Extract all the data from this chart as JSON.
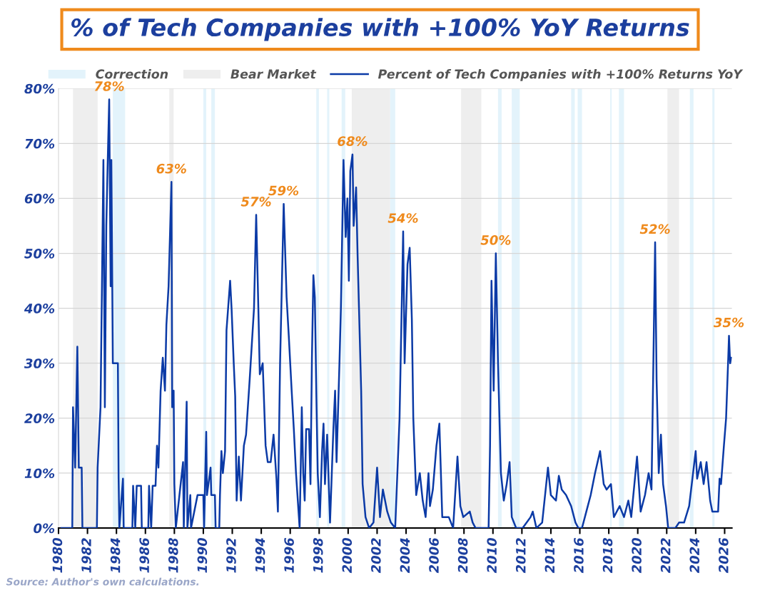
{
  "chart_data": {
    "type": "line",
    "title": "% of Tech Companies with +100% YoY Returns",
    "series": [
      {
        "name": "Percent of Tech Companies with +100% Returns YoY",
        "color": "#0b3aa6",
        "x": [
          1980.2,
          1980.95,
          1981.0,
          1981.15,
          1981.3,
          1981.4,
          1981.6,
          1981.65,
          1982.65,
          1982.7,
          1982.9,
          1983.0,
          1983.1,
          1983.2,
          1983.3,
          1983.4,
          1983.5,
          1983.6,
          1983.65,
          1983.75,
          1984.1,
          1984.15,
          1984.2,
          1984.45,
          1984.5,
          1985.1,
          1985.15,
          1985.3,
          1985.4,
          1985.7,
          1985.75,
          1986.2,
          1986.25,
          1986.4,
          1986.5,
          1986.7,
          1986.8,
          1986.9,
          1987.05,
          1987.2,
          1987.35,
          1987.45,
          1987.6,
          1987.8,
          1987.85,
          1987.95,
          1988.0,
          1988.1,
          1988.6,
          1988.65,
          1988.85,
          1988.9,
          1989.1,
          1989.15,
          1989.6,
          1990.0,
          1990.05,
          1990.2,
          1990.25,
          1990.5,
          1990.55,
          1990.8,
          1990.85,
          1991.1,
          1991.15,
          1991.25,
          1991.35,
          1991.5,
          1991.6,
          1991.85,
          1991.95,
          1992.1,
          1992.2,
          1992.3,
          1992.45,
          1992.6,
          1992.8,
          1992.95,
          1993.2,
          1993.5,
          1993.65,
          1993.8,
          1993.9,
          1994.1,
          1994.3,
          1994.45,
          1994.65,
          1994.85,
          1995.05,
          1995.15,
          1995.3,
          1995.55,
          1995.75,
          1995.9,
          1996.1,
          1996.25,
          1996.4,
          1996.65,
          1996.8,
          1996.9,
          1997.0,
          1997.1,
          1997.3,
          1997.4,
          1997.5,
          1997.6,
          1997.7,
          1997.8,
          1997.9,
          1998.05,
          1998.2,
          1998.3,
          1998.4,
          1998.55,
          1998.75,
          1998.98,
          1999.1,
          1999.2,
          1999.4,
          1999.5,
          1999.68,
          1999.83,
          1999.95,
          2000.05,
          2000.15,
          2000.3,
          2000.38,
          2000.55,
          2000.65,
          2000.75,
          2000.9,
          2001.0,
          2001.2,
          2001.45,
          2001.75,
          2002.0,
          2002.2,
          2002.4,
          2002.7,
          2002.95,
          2003.25,
          2003.55,
          2003.8,
          2003.9,
          2004.1,
          2004.25,
          2004.4,
          2004.5,
          2004.7,
          2004.95,
          2005.15,
          2005.35,
          2005.55,
          2005.65,
          2005.85,
          2006.1,
          2006.3,
          2006.5,
          2006.95,
          2007.25,
          2007.55,
          2007.75,
          2007.95,
          2008.4,
          2008.6,
          2008.8,
          2009.7,
          2009.8,
          2009.9,
          2010.05,
          2010.2,
          2010.35,
          2010.55,
          2010.75,
          2010.95,
          2011.15,
          2011.3,
          2011.6,
          2012.05,
          2012.6,
          2012.75,
          2013.0,
          2013.4,
          2013.8,
          2014.0,
          2014.35,
          2014.55,
          2014.75,
          2015.05,
          2015.4,
          2015.7,
          2015.9,
          2016.15,
          2016.45,
          2016.75,
          2017.05,
          2017.4,
          2017.65,
          2017.85,
          2018.15,
          2018.35,
          2018.75,
          2019.05,
          2019.35,
          2019.55,
          2019.95,
          2020.2,
          2020.5,
          2020.75,
          2020.95,
          2021.2,
          2021.3,
          2021.45,
          2021.6,
          2021.75,
          2021.95,
          2022.1,
          2022.6,
          2022.85,
          2023.2,
          2023.55,
          2024.0,
          2024.1,
          2024.35,
          2024.55,
          2024.75,
          2025.0,
          2025.15,
          2025.55,
          2025.65,
          2025.75,
          2025.95,
          2026.1,
          2026.25,
          2026.3,
          2026.38,
          2026.45
        ],
        "values": [
          0,
          0,
          22,
          11,
          33,
          11,
          11,
          0,
          0,
          11,
          22,
          44,
          67,
          22,
          55,
          67,
          78,
          44,
          67,
          30,
          30,
          9,
          0,
          9,
          0,
          0,
          7.7,
          0,
          7.7,
          7.7,
          0,
          0,
          7.7,
          0,
          7.7,
          7.7,
          15,
          11,
          25,
          31,
          25,
          37,
          44,
          63,
          22,
          25,
          8,
          0,
          12,
          0,
          23,
          0,
          6,
          0,
          6,
          6,
          0,
          17.5,
          6,
          11,
          6,
          6,
          0,
          0,
          6,
          14,
          10,
          14,
          36,
          45,
          40,
          30,
          24,
          5,
          13,
          5,
          15,
          17,
          27,
          40,
          57,
          40,
          28,
          30,
          15,
          12,
          12,
          17,
          9,
          3,
          30,
          59,
          42,
          35,
          25,
          18,
          10,
          0,
          22,
          10,
          5,
          18,
          18,
          8,
          31,
          46,
          42,
          25,
          10,
          2,
          14,
          19,
          8,
          17,
          1,
          18,
          25,
          12,
          30,
          40,
          67,
          53,
          60,
          45,
          65,
          68,
          55,
          62,
          50,
          40,
          25,
          8,
          2,
          0,
          1,
          11,
          2,
          7,
          3,
          1,
          0,
          20,
          54,
          30,
          48,
          51,
          38,
          20,
          6,
          10,
          5,
          2,
          10,
          4,
          7,
          15,
          19,
          2,
          2,
          0,
          13,
          4,
          2,
          3,
          1,
          0,
          0,
          15,
          45,
          25,
          50,
          30,
          10,
          5,
          8,
          12,
          2,
          0,
          0,
          2,
          3,
          0,
          1,
          11,
          6,
          5,
          9.5,
          7,
          6,
          4,
          1,
          0,
          0,
          3,
          6,
          10,
          14,
          8,
          7,
          8,
          2,
          4,
          2,
          5,
          2,
          13,
          3,
          6,
          10,
          7,
          52,
          27,
          10,
          17,
          8,
          4,
          0,
          0,
          1,
          1,
          4,
          14,
          9,
          12,
          8,
          12,
          5,
          3,
          3,
          9,
          8,
          15,
          20,
          31,
          35,
          30,
          31
        ]
      }
    ],
    "bands": [
      {
        "axis": "x",
        "from": 1983.75,
        "to": 1984.6,
        "label": "Correction",
        "color": "#e3f3fb"
      },
      {
        "axis": "x",
        "from": 1981.0,
        "to": 1982.7,
        "label": "Bear Market",
        "color": "#eeeeee"
      },
      {
        "axis": "x",
        "from": 1987.65,
        "to": 1987.95,
        "color": "#eeeeee"
      },
      {
        "axis": "x",
        "from": 1990.0,
        "to": 1990.2,
        "color": "#e3f3fb"
      },
      {
        "axis": "x",
        "from": 1990.55,
        "to": 1990.8,
        "color": "#e3f3fb"
      },
      {
        "axis": "x",
        "from": 1997.8,
        "to": 1997.98,
        "color": "#e3f3fb"
      },
      {
        "axis": "x",
        "from": 1998.55,
        "to": 1998.7,
        "color": "#e3f3fb"
      },
      {
        "axis": "x",
        "from": 1999.55,
        "to": 1999.8,
        "color": "#e3f3fb"
      },
      {
        "axis": "x",
        "from": 2000.25,
        "to": 2002.9,
        "color": "#eeeeee"
      },
      {
        "axis": "x",
        "from": 2002.9,
        "to": 2003.25,
        "color": "#e3f3fb"
      },
      {
        "axis": "x",
        "from": 2007.8,
        "to": 2009.2,
        "color": "#eeeeee"
      },
      {
        "axis": "x",
        "from": 2010.35,
        "to": 2010.6,
        "color": "#e3f3fb"
      },
      {
        "axis": "x",
        "from": 2011.3,
        "to": 2011.85,
        "color": "#e3f3fb"
      },
      {
        "axis": "x",
        "from": 2015.4,
        "to": 2015.65,
        "color": "#e3f3fb"
      },
      {
        "axis": "x",
        "from": 2015.85,
        "to": 2016.15,
        "color": "#e3f3fb"
      },
      {
        "axis": "x",
        "from": 2018.1,
        "to": 2018.2,
        "color": "#e3f3fb"
      },
      {
        "axis": "x",
        "from": 2018.7,
        "to": 2019.05,
        "color": "#e3f3fb"
      },
      {
        "axis": "x",
        "from": 2022.05,
        "to": 2022.85,
        "color": "#eeeeee"
      },
      {
        "axis": "x",
        "from": 2023.6,
        "to": 2023.85,
        "color": "#e3f3fb"
      },
      {
        "axis": "x",
        "from": 2025.15,
        "to": 2025.3,
        "color": "#e3f3fb"
      }
    ],
    "annotations": [
      {
        "text": "78%",
        "x": 1983.5,
        "y": 78
      },
      {
        "text": "63%",
        "x": 1987.8,
        "y": 63
      },
      {
        "text": "57%",
        "x": 1993.65,
        "y": 57
      },
      {
        "text": "59%",
        "x": 1995.55,
        "y": 59
      },
      {
        "text": "68%",
        "x": 2000.3,
        "y": 68
      },
      {
        "text": "54%",
        "x": 2003.8,
        "y": 54
      },
      {
        "text": "50%",
        "x": 2010.2,
        "y": 50
      },
      {
        "text": "52%",
        "x": 2021.2,
        "y": 52
      },
      {
        "text": "35%",
        "x": 2026.3,
        "y": 35
      },
      "Source: Author's own calculations."
    ],
    "xlim": [
      1980,
      2026.5
    ],
    "xticks": [
      1980,
      1982,
      1984,
      1986,
      1988,
      1990,
      1992,
      1994,
      1996,
      1998,
      2000,
      2002,
      2004,
      2006,
      2008,
      2010,
      2012,
      2014,
      2016,
      2018,
      2020,
      2022,
      2024,
      2026
    ],
    "ylim": [
      0,
      80
    ],
    "yticks": [
      {
        "value": 0,
        "label": "0%"
      },
      {
        "value": 10,
        "label": "10%"
      },
      {
        "value": 20,
        "label": "20%"
      },
      {
        "value": 30,
        "label": "30%"
      },
      {
        "value": 40,
        "label": "40%"
      },
      {
        "value": 50,
        "label": "50%"
      },
      {
        "value": 60,
        "label": "60%"
      },
      {
        "value": 70,
        "label": "70%"
      },
      {
        "value": 80,
        "label": "80%"
      }
    ],
    "grid": "y",
    "legend": "top",
    "marker": "none",
    "line_style": "solid"
  }
}
